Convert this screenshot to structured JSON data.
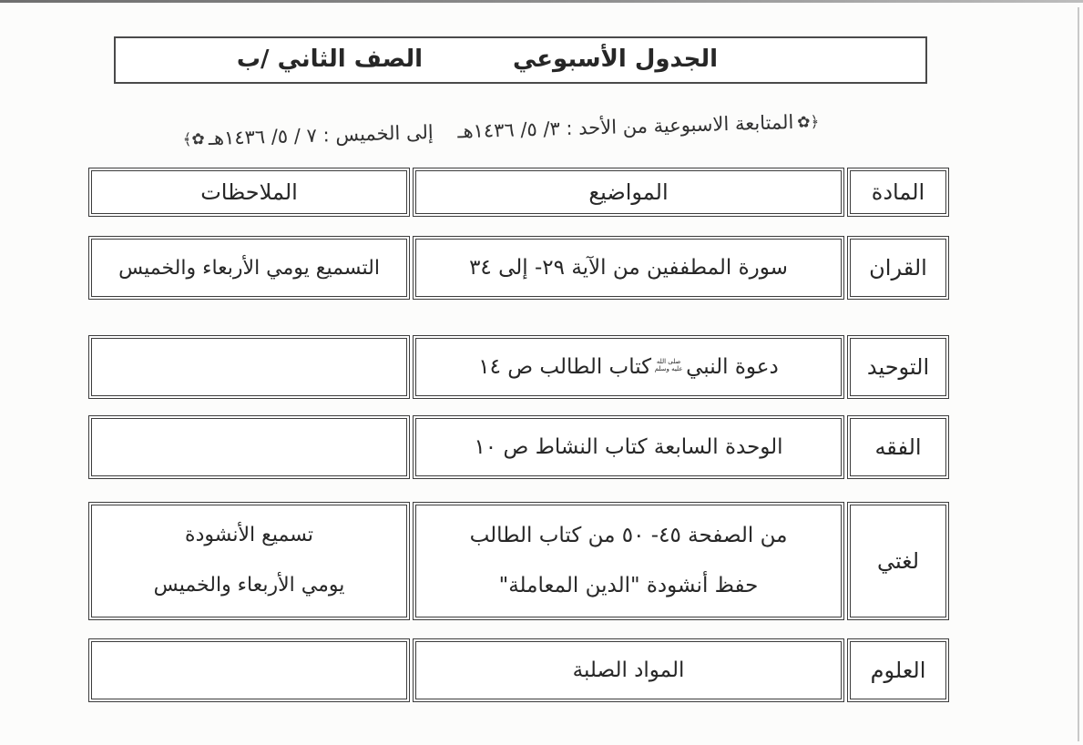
{
  "header": {
    "title": "الجدول الأسبوعي",
    "class_label": "الصف الثاني /ب"
  },
  "subtitle": {
    "ornament_right": "﴿✿",
    "text": "المتابعة الاسبوعية من الأحد :  ٣/ ٥/ ١٤٣٦هـ    إلى الخميس : ٧ / ٥/ ١٤٣٦هـ",
    "ornament_left": "✿﴾"
  },
  "table": {
    "headers": {
      "subject": "المادة",
      "topics": "المواضيع",
      "notes": "الملاحظات"
    },
    "rows": [
      {
        "subject": "القران",
        "topics": "سورة المطففين من الآية ٢٩- إلى ٣٤",
        "notes": "التسميع يومي الأربعاء والخميس"
      },
      {
        "subject": "التوحيد",
        "topics_before": "دعوة النبي",
        "honorific": "صلى الله عليه وسلم",
        "honorific_char": "ﷺ",
        "topics_after": "كتاب الطالب ص ١٤",
        "notes": ""
      },
      {
        "subject": "الفقه",
        "topics": "الوحدة السابعة كتاب النشاط ص ١٠",
        "notes": ""
      },
      {
        "subject": "لغتي",
        "topics_line1": "من الصفحة ٤٥- ٥٠ من كتاب الطالب",
        "topics_line2": "حفظ أنشودة \"الدين المعاملة\"",
        "notes_line1": "تسميع الأنشودة",
        "notes_line2": "يومي الأربعاء والخميس"
      },
      {
        "subject": "العلوم",
        "topics": "المواد الصلبة",
        "notes": ""
      }
    ]
  },
  "colors": {
    "ink": "#272727",
    "border": "#3c3c3c",
    "paper": "#fcfcfb"
  }
}
